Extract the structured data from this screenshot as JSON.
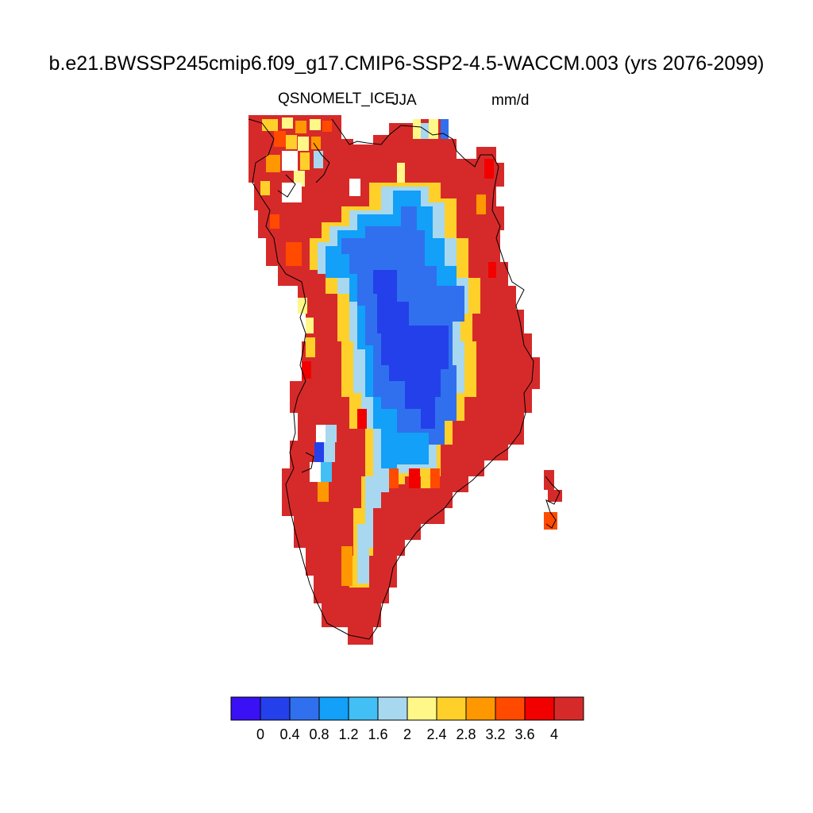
{
  "title": "b.e21.BWSSP245cmip6.f09_g17.CMIP6-SSP2-4.5-WACCM.003 (yrs 2076-2099)",
  "variable": "QSNOMELT_ICE",
  "season": "JJA",
  "units": "mm/d",
  "colorbar": {
    "levels": [
      "0",
      "0.4",
      "0.8",
      "1.2",
      "1.6",
      "2",
      "2.4",
      "2.8",
      "3.2",
      "3.6",
      "4"
    ],
    "colors": [
      "#3a10f5",
      "#2440ea",
      "#3070ee",
      "#12a0f8",
      "#42bff5",
      "#a8d8ef",
      "#fff888",
      "#ffd02a",
      "#ff9800",
      "#ff4a00",
      "#f20000",
      "#d62a2a"
    ]
  }
}
